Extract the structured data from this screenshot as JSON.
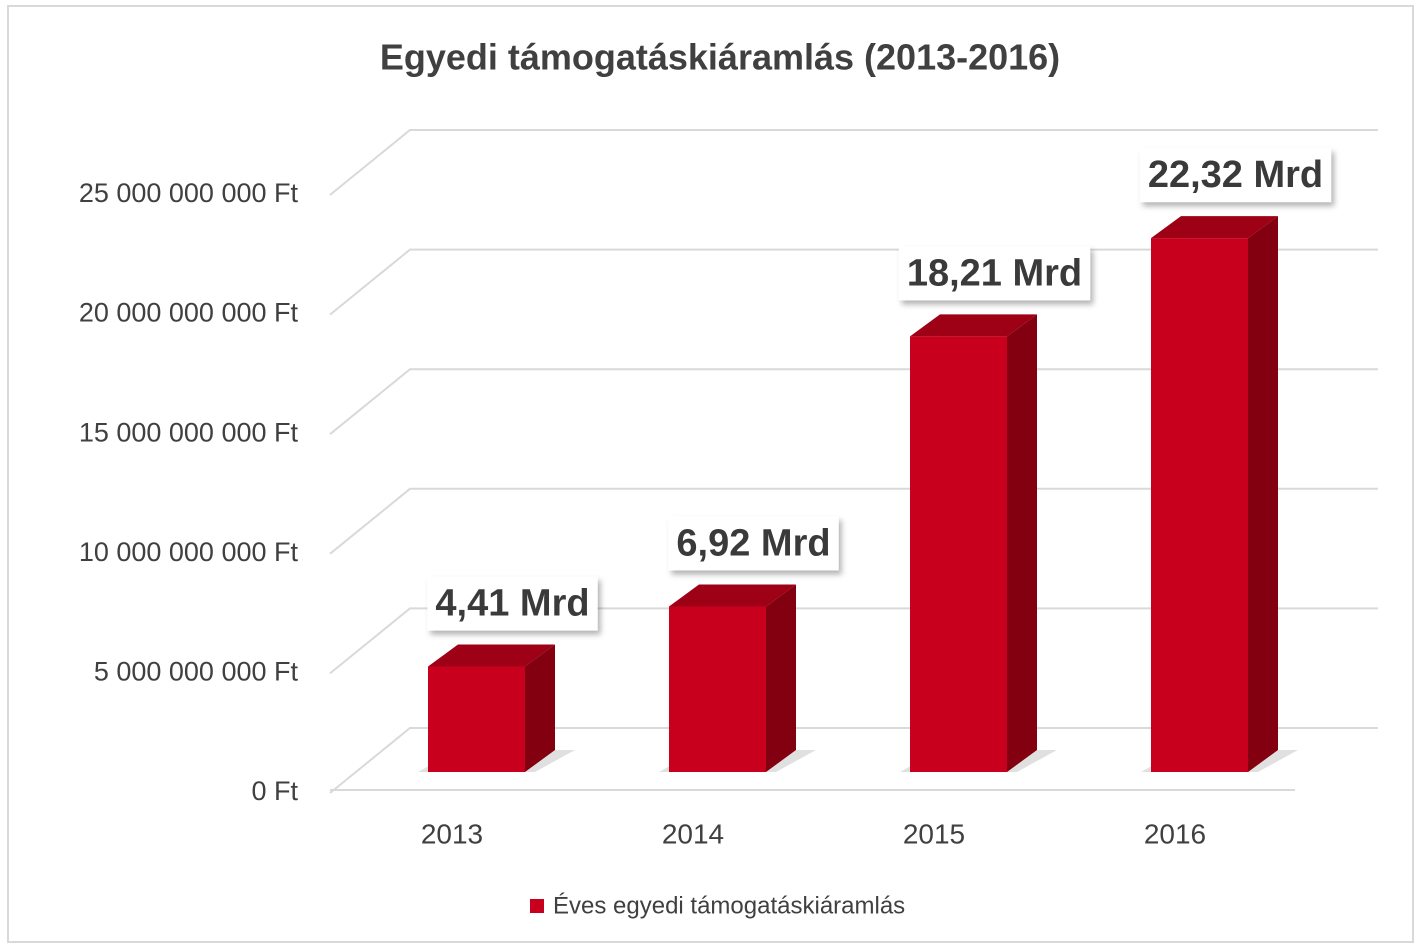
{
  "chart_data": {
    "type": "bar3d",
    "title": "Egyedi támogatáskiáramlás (2013-2016)",
    "categories": [
      "2013",
      "2014",
      "2015",
      "2016"
    ],
    "series": [
      {
        "name": "Éves egyedi támogatáskiáramlás",
        "color": "#c8001e",
        "values": [
          4410000000,
          6920000000,
          18210000000,
          22320000000
        ],
        "value_labels": [
          "4,41 Mrd",
          "6,92 Mrd",
          "18,21 Mrd",
          "22,32 Mrd"
        ]
      }
    ],
    "ylim": [
      0,
      25000000000
    ],
    "yticks": [
      {
        "value": 0,
        "label": "0 Ft"
      },
      {
        "value": 5000000000,
        "label": "5 000 000 000 Ft"
      },
      {
        "value": 10000000000,
        "label": "10 000 000 000 Ft"
      },
      {
        "value": 15000000000,
        "label": "15 000 000 000 Ft"
      },
      {
        "value": 20000000000,
        "label": "20 000 000 000 Ft"
      },
      {
        "value": 25000000000,
        "label": "25 000 000 000 Ft"
      }
    ],
    "grid": true,
    "legend": "bottom"
  }
}
